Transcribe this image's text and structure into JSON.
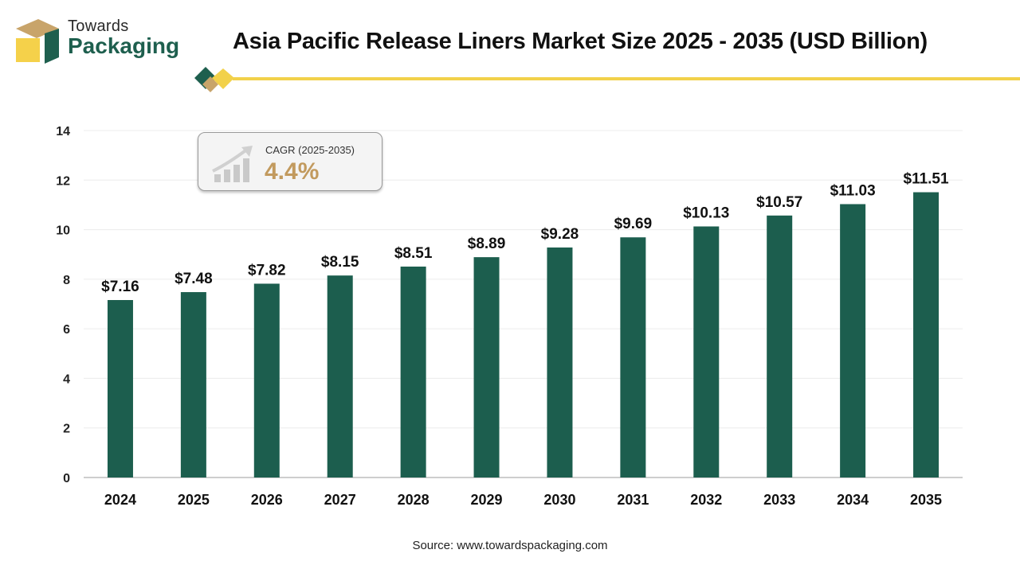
{
  "logo": {
    "line1": "Towards",
    "line2": "Packaging"
  },
  "title": "Asia Pacific Release Liners Market Size 2025 - 2035 (USD Billion)",
  "cagr": {
    "label": "CAGR (2025-2035)",
    "value": "4.4%"
  },
  "source": "Source: www.towardspackaging.com",
  "colors": {
    "bar": "#1c5e4e",
    "accent_gold": "#f2d14a",
    "cagr_text": "#c29a5e",
    "logo_green": "#1e5f4e"
  },
  "chart_data": {
    "type": "bar",
    "categories": [
      "2024",
      "2025",
      "2026",
      "2027",
      "2028",
      "2029",
      "2030",
      "2031",
      "2032",
      "2033",
      "2034",
      "2035"
    ],
    "values": [
      7.16,
      7.48,
      7.82,
      8.15,
      8.51,
      8.89,
      9.28,
      9.69,
      10.13,
      10.57,
      11.03,
      11.51
    ],
    "data_labels": [
      "$7.16",
      "$7.48",
      "$7.82",
      "$8.15",
      "$8.51",
      "$8.89",
      "$9.28",
      "$9.69",
      "$10.13",
      "$10.57",
      "$11.03",
      "$11.51"
    ],
    "title": "Asia Pacific Release Liners Market Size 2025 - 2035 (USD Billion)",
    "xlabel": "",
    "ylabel": "",
    "ylim": [
      0,
      14
    ],
    "yticks": [
      0,
      2,
      4,
      6,
      8,
      10,
      12,
      14
    ],
    "grid": true,
    "legend": "none"
  }
}
